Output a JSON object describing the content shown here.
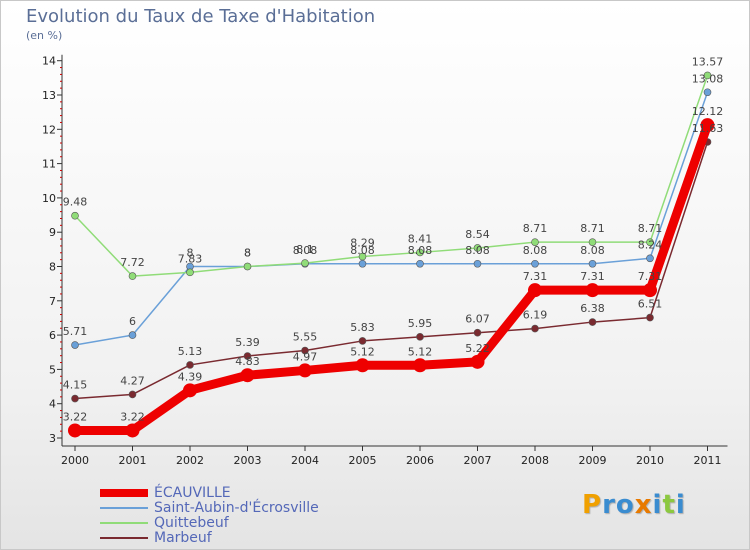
{
  "title": "Evolution du Taux de Taxe d'Habitation",
  "subtitle": "(en %)",
  "logo": {
    "text": "Proxiti",
    "letters": [
      "P",
      "r",
      "o",
      "x",
      "i",
      "t",
      "i"
    ],
    "colors": [
      "#f0a000",
      "#3a8cd0",
      "#3a8cd0",
      "#e87a00",
      "#3a8cd0",
      "#8cc840",
      "#3a8cd0"
    ]
  },
  "chart_data": {
    "type": "line",
    "title": "Evolution du Taux de Taxe d'Habitation",
    "ylabel": "(en %)",
    "xlabel": "",
    "categories": [
      "2000",
      "2001",
      "2002",
      "2003",
      "2004",
      "2005",
      "2006",
      "2007",
      "2008",
      "2009",
      "2010",
      "2011"
    ],
    "ylim": [
      3,
      14
    ],
    "yticks": [
      3,
      4,
      5,
      6,
      7,
      8,
      9,
      10,
      11,
      12,
      13,
      14
    ],
    "grid": false,
    "legend_position": "bottom-left",
    "series": [
      {
        "name": "ÉCAUVILLE",
        "color": "#ee0000",
        "values": [
          3.22,
          3.22,
          4.39,
          4.83,
          4.97,
          5.12,
          5.12,
          5.22,
          7.31,
          7.31,
          7.31,
          12.12
        ],
        "labels": [
          "3.22",
          "3.22",
          "4.39",
          "4.83",
          "4.97",
          "5.12",
          "5.12",
          "5.22",
          "7.31",
          "7.31",
          "7.31",
          "12.12"
        ]
      },
      {
        "name": "Saint-Aubin-d'Écrosville",
        "color": "#6aa0d8",
        "values": [
          5.71,
          6.0,
          8.0,
          8.0,
          8.08,
          8.08,
          8.08,
          8.08,
          8.08,
          8.08,
          8.24,
          13.08
        ],
        "labels": [
          "5.71",
          "6",
          "8",
          "8",
          "8.08",
          "8.08",
          "8.08",
          "8.08",
          "8.08",
          "8.08",
          "8.24",
          "13.08"
        ]
      },
      {
        "name": "Quittebeuf",
        "color": "#90dc78",
        "values": [
          9.48,
          7.72,
          7.83,
          8.0,
          8.1,
          8.29,
          8.41,
          8.54,
          8.71,
          8.71,
          8.71,
          13.57
        ],
        "labels": [
          "9.48",
          "7.72",
          "7.83",
          "8",
          "8.1",
          "8.29",
          "8.41",
          "8.54",
          "8.71",
          "8.71",
          "8.71",
          "13.57"
        ]
      },
      {
        "name": "Marbeuf",
        "color": "#7a2a30",
        "values": [
          4.15,
          4.27,
          5.13,
          5.39,
          5.55,
          5.83,
          5.95,
          6.07,
          6.19,
          6.38,
          6.51,
          11.63
        ],
        "labels": [
          "4.15",
          "4.27",
          "5.13",
          "5.39",
          "5.55",
          "5.83",
          "5.95",
          "6.07",
          "6.19",
          "6.38",
          "6.51",
          "11.63"
        ]
      }
    ]
  },
  "legend": [
    {
      "name": "ÉCAUVILLE",
      "color": "#ee0000"
    },
    {
      "name": "Saint-Aubin-d'Écrosville",
      "color": "#6aa0d8"
    },
    {
      "name": "Quittebeuf",
      "color": "#90dc78"
    },
    {
      "name": "Marbeuf",
      "color": "#7a2a30"
    }
  ]
}
